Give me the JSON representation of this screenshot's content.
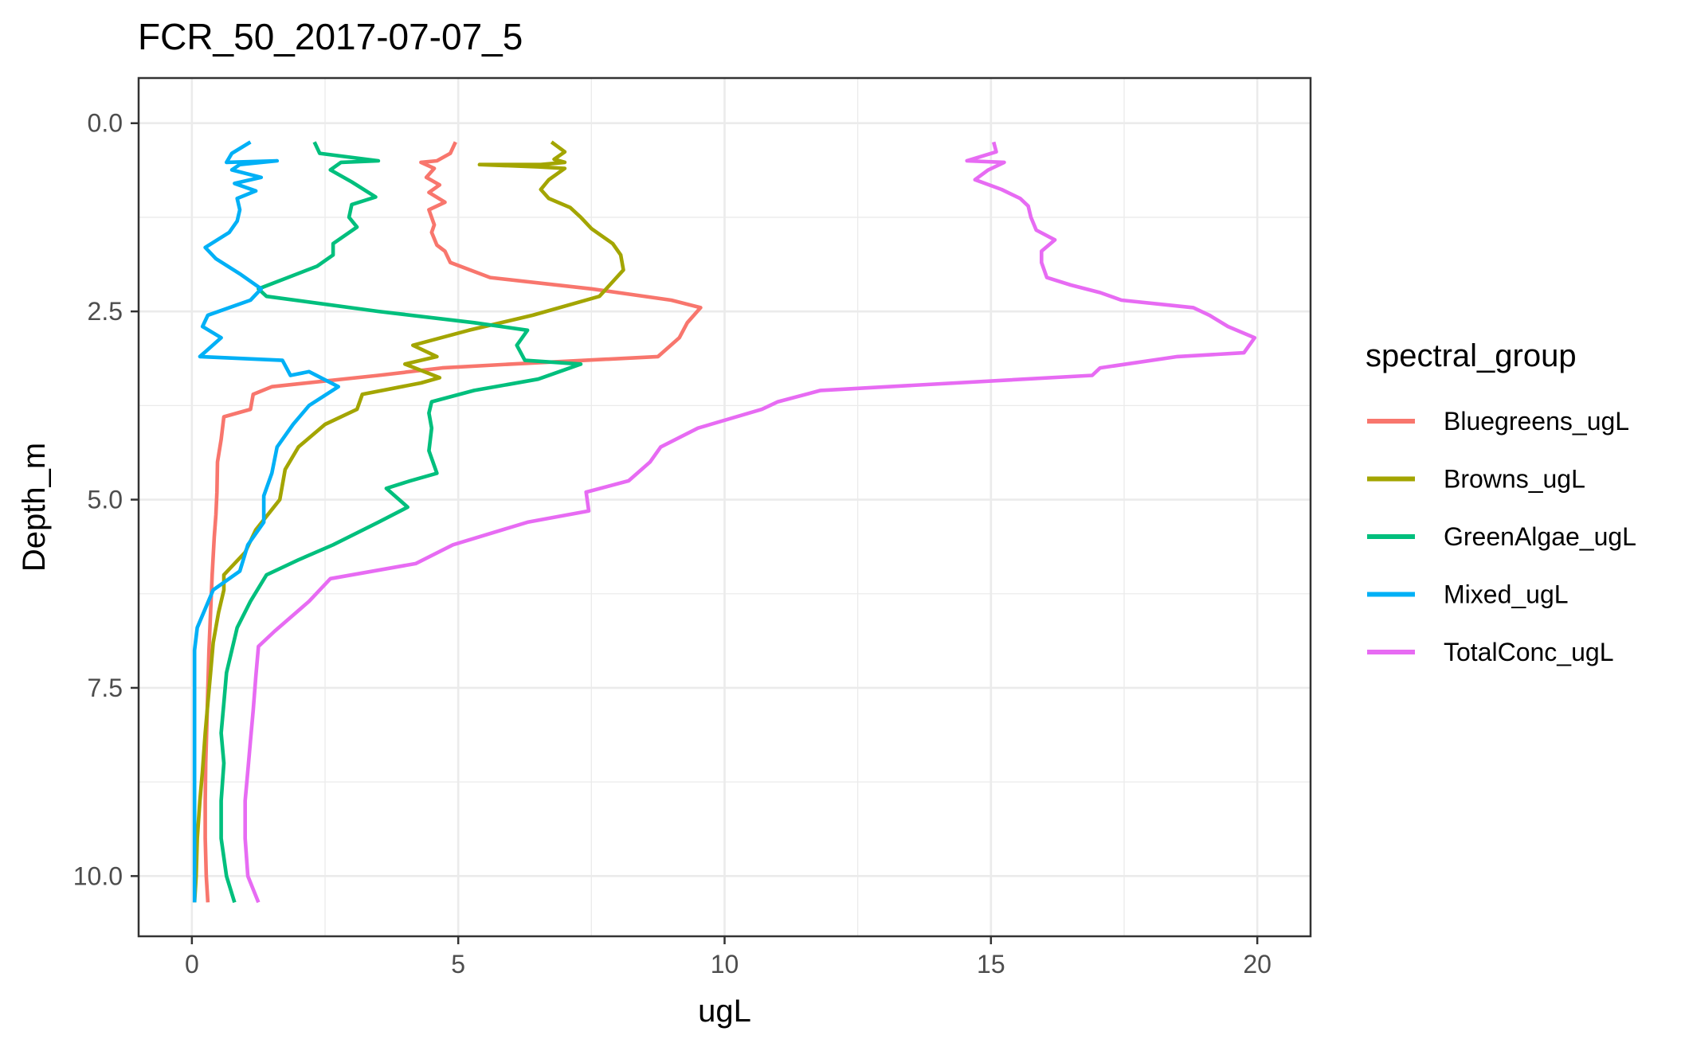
{
  "chart_data": {
    "type": "line",
    "title": "FCR_50_2017-07-07_5",
    "xlabel": "ugL",
    "ylabel": "Depth_m",
    "xlim": [
      -1,
      21
    ],
    "ylim": [
      10.8,
      -0.6
    ],
    "y_reversed": true,
    "x_ticks": [
      0,
      5,
      10,
      15,
      20
    ],
    "x_tick_labels": [
      "0",
      "5",
      "10",
      "15",
      "20"
    ],
    "y_ticks": [
      0,
      2.5,
      5,
      7.5,
      10
    ],
    "y_tick_labels": [
      "0.0",
      "2.5",
      "5.0",
      "7.5",
      "10.0"
    ],
    "grid": true,
    "legend_title": "spectral_group",
    "legend_position": "right",
    "series": [
      {
        "name": "Bluegreens_ugL",
        "color": "#F8766D",
        "points": [
          [
            4.95,
            0.25
          ],
          [
            4.85,
            0.4
          ],
          [
            4.6,
            0.5
          ],
          [
            4.3,
            0.52
          ],
          [
            4.55,
            0.6
          ],
          [
            4.4,
            0.72
          ],
          [
            4.65,
            0.82
          ],
          [
            4.45,
            0.92
          ],
          [
            4.75,
            1.05
          ],
          [
            4.45,
            1.15
          ],
          [
            4.55,
            1.35
          ],
          [
            4.5,
            1.45
          ],
          [
            4.6,
            1.62
          ],
          [
            4.75,
            1.7
          ],
          [
            4.85,
            1.85
          ],
          [
            5.6,
            2.05
          ],
          [
            7.5,
            2.2
          ],
          [
            9.0,
            2.35
          ],
          [
            9.55,
            2.45
          ],
          [
            9.3,
            2.65
          ],
          [
            9.15,
            2.85
          ],
          [
            8.75,
            3.1
          ],
          [
            6.0,
            3.2
          ],
          [
            4.7,
            3.25
          ],
          [
            3.5,
            3.35
          ],
          [
            1.5,
            3.5
          ],
          [
            1.15,
            3.6
          ],
          [
            1.1,
            3.8
          ],
          [
            0.6,
            3.9
          ],
          [
            0.55,
            4.2
          ],
          [
            0.48,
            4.5
          ],
          [
            0.47,
            4.9
          ],
          [
            0.45,
            5.2
          ],
          [
            0.42,
            5.5
          ],
          [
            0.38,
            6.0
          ],
          [
            0.35,
            6.5
          ],
          [
            0.32,
            7.0
          ],
          [
            0.3,
            7.5
          ],
          [
            0.28,
            8.0
          ],
          [
            0.26,
            8.5
          ],
          [
            0.25,
            9.0
          ],
          [
            0.25,
            9.5
          ],
          [
            0.27,
            10.0
          ],
          [
            0.3,
            10.35
          ]
        ]
      },
      {
        "name": "Browns_ugL",
        "color": "#A3A500",
        "points": [
          [
            6.75,
            0.25
          ],
          [
            7.0,
            0.38
          ],
          [
            6.8,
            0.48
          ],
          [
            7.0,
            0.52
          ],
          [
            6.55,
            0.55
          ],
          [
            5.4,
            0.55
          ],
          [
            6.5,
            0.58
          ],
          [
            7.0,
            0.6
          ],
          [
            6.7,
            0.75
          ],
          [
            6.55,
            0.88
          ],
          [
            6.7,
            1.0
          ],
          [
            7.1,
            1.12
          ],
          [
            7.3,
            1.25
          ],
          [
            7.5,
            1.4
          ],
          [
            7.9,
            1.6
          ],
          [
            8.05,
            1.75
          ],
          [
            8.1,
            1.95
          ],
          [
            7.65,
            2.3
          ],
          [
            6.4,
            2.55
          ],
          [
            5.2,
            2.75
          ],
          [
            4.15,
            2.95
          ],
          [
            4.6,
            3.1
          ],
          [
            4.0,
            3.2
          ],
          [
            4.65,
            3.38
          ],
          [
            4.3,
            3.45
          ],
          [
            3.2,
            3.6
          ],
          [
            3.1,
            3.8
          ],
          [
            2.5,
            4.0
          ],
          [
            2.0,
            4.3
          ],
          [
            1.75,
            4.6
          ],
          [
            1.65,
            5.0
          ],
          [
            1.2,
            5.4
          ],
          [
            1.0,
            5.7
          ],
          [
            0.6,
            6.0
          ],
          [
            0.6,
            6.2
          ],
          [
            0.5,
            6.5
          ],
          [
            0.4,
            6.9
          ],
          [
            0.35,
            7.3
          ],
          [
            0.3,
            7.7
          ],
          [
            0.25,
            8.1
          ],
          [
            0.2,
            8.6
          ],
          [
            0.15,
            9.0
          ],
          [
            0.1,
            9.5
          ],
          [
            0.08,
            10.0
          ],
          [
            0.05,
            10.35
          ]
        ]
      },
      {
        "name": "GreenAlgae_ugL",
        "color": "#00BF7D",
        "points": [
          [
            2.3,
            0.25
          ],
          [
            2.4,
            0.4
          ],
          [
            3.5,
            0.5
          ],
          [
            2.8,
            0.52
          ],
          [
            2.6,
            0.62
          ],
          [
            3.0,
            0.78
          ],
          [
            3.45,
            0.98
          ],
          [
            3.0,
            1.08
          ],
          [
            2.95,
            1.25
          ],
          [
            3.1,
            1.38
          ],
          [
            2.65,
            1.6
          ],
          [
            2.65,
            1.75
          ],
          [
            2.35,
            1.9
          ],
          [
            1.8,
            2.05
          ],
          [
            1.25,
            2.2
          ],
          [
            1.4,
            2.3
          ],
          [
            3.5,
            2.5
          ],
          [
            5.3,
            2.65
          ],
          [
            6.3,
            2.75
          ],
          [
            6.1,
            2.95
          ],
          [
            6.25,
            3.15
          ],
          [
            7.3,
            3.2
          ],
          [
            6.5,
            3.4
          ],
          [
            5.3,
            3.55
          ],
          [
            4.5,
            3.7
          ],
          [
            4.45,
            3.85
          ],
          [
            4.5,
            4.05
          ],
          [
            4.45,
            4.35
          ],
          [
            4.6,
            4.65
          ],
          [
            4.1,
            4.75
          ],
          [
            3.65,
            4.85
          ],
          [
            4.05,
            5.1
          ],
          [
            3.5,
            5.3
          ],
          [
            2.65,
            5.6
          ],
          [
            2.0,
            5.8
          ],
          [
            1.4,
            6.0
          ],
          [
            1.1,
            6.35
          ],
          [
            0.85,
            6.7
          ],
          [
            0.75,
            7.0
          ],
          [
            0.65,
            7.3
          ],
          [
            0.6,
            7.7
          ],
          [
            0.55,
            8.1
          ],
          [
            0.6,
            8.5
          ],
          [
            0.55,
            9.0
          ],
          [
            0.55,
            9.5
          ],
          [
            0.65,
            10.0
          ],
          [
            0.8,
            10.35
          ]
        ]
      },
      {
        "name": "Mixed_ugL",
        "color": "#00B0F6",
        "points": [
          [
            1.1,
            0.25
          ],
          [
            0.75,
            0.4
          ],
          [
            0.65,
            0.52
          ],
          [
            1.6,
            0.5
          ],
          [
            0.9,
            0.55
          ],
          [
            0.75,
            0.62
          ],
          [
            1.3,
            0.72
          ],
          [
            0.8,
            0.8
          ],
          [
            1.2,
            0.9
          ],
          [
            0.85,
            1.0
          ],
          [
            0.9,
            1.15
          ],
          [
            0.85,
            1.3
          ],
          [
            0.7,
            1.45
          ],
          [
            0.25,
            1.65
          ],
          [
            0.45,
            1.8
          ],
          [
            0.9,
            2.0
          ],
          [
            1.3,
            2.2
          ],
          [
            1.1,
            2.35
          ],
          [
            0.3,
            2.55
          ],
          [
            0.2,
            2.7
          ],
          [
            0.55,
            2.85
          ],
          [
            0.15,
            3.1
          ],
          [
            1.7,
            3.15
          ],
          [
            1.85,
            3.35
          ],
          [
            2.2,
            3.3
          ],
          [
            2.75,
            3.5
          ],
          [
            2.2,
            3.75
          ],
          [
            1.9,
            4.0
          ],
          [
            1.6,
            4.3
          ],
          [
            1.5,
            4.65
          ],
          [
            1.35,
            4.95
          ],
          [
            1.35,
            5.3
          ],
          [
            1.05,
            5.6
          ],
          [
            0.9,
            5.95
          ],
          [
            0.4,
            6.2
          ],
          [
            0.1,
            6.7
          ],
          [
            0.05,
            7.0
          ],
          [
            0.05,
            7.5
          ],
          [
            0.05,
            8.0
          ],
          [
            0.05,
            8.5
          ],
          [
            0.05,
            9.0
          ],
          [
            0.05,
            9.5
          ],
          [
            0.05,
            10.0
          ],
          [
            0.05,
            10.35
          ]
        ]
      },
      {
        "name": "TotalConc_ugL",
        "color": "#E76BF3",
        "points": [
          [
            15.05,
            0.25
          ],
          [
            15.1,
            0.38
          ],
          [
            14.55,
            0.5
          ],
          [
            15.25,
            0.52
          ],
          [
            14.95,
            0.62
          ],
          [
            14.7,
            0.75
          ],
          [
            15.2,
            0.88
          ],
          [
            15.55,
            1.0
          ],
          [
            15.7,
            1.1
          ],
          [
            15.75,
            1.25
          ],
          [
            15.85,
            1.42
          ],
          [
            16.2,
            1.55
          ],
          [
            15.95,
            1.7
          ],
          [
            15.95,
            1.85
          ],
          [
            16.05,
            2.05
          ],
          [
            16.5,
            2.15
          ],
          [
            17.05,
            2.25
          ],
          [
            17.45,
            2.35
          ],
          [
            18.8,
            2.45
          ],
          [
            19.1,
            2.55
          ],
          [
            19.45,
            2.7
          ],
          [
            19.95,
            2.85
          ],
          [
            19.75,
            3.05
          ],
          [
            18.5,
            3.1
          ],
          [
            17.05,
            3.25
          ],
          [
            16.9,
            3.35
          ],
          [
            11.8,
            3.55
          ],
          [
            11.0,
            3.7
          ],
          [
            10.7,
            3.8
          ],
          [
            9.5,
            4.05
          ],
          [
            8.8,
            4.3
          ],
          [
            8.6,
            4.5
          ],
          [
            8.2,
            4.75
          ],
          [
            7.4,
            4.9
          ],
          [
            7.45,
            5.15
          ],
          [
            6.3,
            5.3
          ],
          [
            4.9,
            5.6
          ],
          [
            4.2,
            5.85
          ],
          [
            2.6,
            6.05
          ],
          [
            2.2,
            6.35
          ],
          [
            1.55,
            6.75
          ],
          [
            1.25,
            6.95
          ],
          [
            1.2,
            7.35
          ],
          [
            1.15,
            7.8
          ],
          [
            1.1,
            8.2
          ],
          [
            1.05,
            8.6
          ],
          [
            1.0,
            9.0
          ],
          [
            1.0,
            9.5
          ],
          [
            1.05,
            10.0
          ],
          [
            1.25,
            10.35
          ]
        ]
      }
    ]
  }
}
